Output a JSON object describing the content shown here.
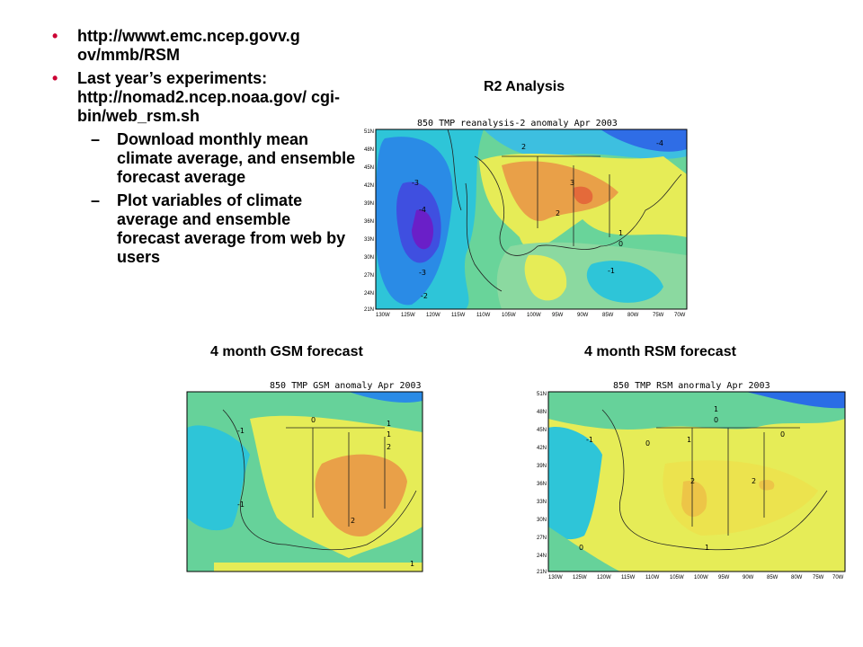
{
  "bullets": [
    {
      "text": "http://wwwt.emc.ncep.govv.g ov/mmb/RSM"
    },
    {
      "text": "Last year’s experiments: http://nomad2.ncep.noaa.gov/ cgi-bin/web_rsm.sh",
      "sub": [
        "Download monthly mean climate average, and ensemble forecast average",
        "Plot variables of climate average and ensemble forecast average from web by users"
      ]
    }
  ],
  "bullet_glyph": "•",
  "sub_glyph": "–",
  "captions": {
    "r2": "R2 Analysis",
    "gsm": "4 month GSM forecast",
    "rsm": "4 month RSM forecast"
  },
  "maps": [
    {
      "title": "850 TMP reanalysis-2 anomaly Apr 2003",
      "contour_labels": [
        "-4",
        "2",
        "-3",
        "-4",
        "3",
        "2",
        "1",
        "0",
        "-3",
        "-1",
        "-2"
      ]
    },
    {
      "title": "850 TMP GSM anomaly Apr 2003",
      "contour_labels": [
        "-1",
        "0",
        "1",
        "1",
        "2",
        "-1",
        "2",
        "1"
      ]
    },
    {
      "title": "850 TMP RSM anormaly Apr 2003",
      "contour_labels": [
        "1",
        "0",
        "-1",
        "0",
        "1",
        "0",
        "2",
        "2",
        "1",
        "0"
      ]
    }
  ],
  "lat_ticks": [
    "51N",
    "48N",
    "45N",
    "42N",
    "39N",
    "36N",
    "33N",
    "30N",
    "27N",
    "24N",
    "21N"
  ],
  "lon_ticks": [
    "130W",
    "125W",
    "120W",
    "115W",
    "110W",
    "105W",
    "100W",
    "95W",
    "90W",
    "85W",
    "80W",
    "75W",
    "70W"
  ],
  "colors": {
    "bullet": "#cc0033",
    "blue": "#2a52e0",
    "yellow": "#e6ec57",
    "orange": "#e9a048"
  }
}
